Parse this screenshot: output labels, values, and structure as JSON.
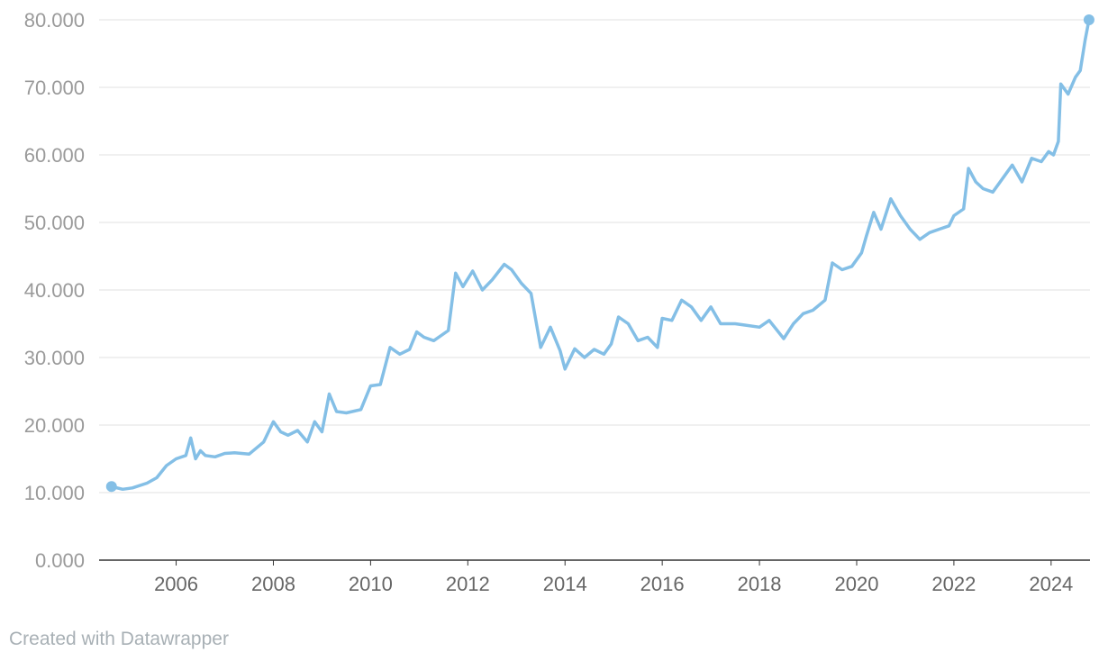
{
  "chart_data": {
    "type": "line",
    "title": "",
    "xlabel": "",
    "ylabel": "",
    "ylim": [
      0,
      80
    ],
    "xlim": [
      2004.6,
      2024.8
    ],
    "y_ticks": [
      0,
      10,
      20,
      30,
      40,
      50,
      60,
      70,
      80
    ],
    "y_tick_labels": [
      "0.000",
      "10.000",
      "20.000",
      "30.000",
      "40.000",
      "50.000",
      "60.000",
      "70.000",
      "80.000"
    ],
    "x_ticks": [
      2006,
      2008,
      2010,
      2012,
      2014,
      2016,
      2018,
      2020,
      2022,
      2024
    ],
    "x_tick_labels": [
      "2006",
      "2008",
      "2010",
      "2012",
      "2014",
      "2016",
      "2018",
      "2020",
      "2022",
      "2024"
    ],
    "grid": true,
    "line_color": "#84bfe6",
    "series": [
      {
        "x": [
          2004.67,
          2004.9,
          2005.1,
          2005.4,
          2005.6,
          2005.8,
          2006.0,
          2006.2,
          2006.3,
          2006.4,
          2006.5,
          2006.6,
          2006.8,
          2007.0,
          2007.2,
          2007.5,
          2007.8,
          2008.0,
          2008.15,
          2008.3,
          2008.5,
          2008.7,
          2008.85,
          2009.0,
          2009.15,
          2009.3,
          2009.5,
          2009.8,
          2010.0,
          2010.2,
          2010.4,
          2010.6,
          2010.8,
          2010.95,
          2011.1,
          2011.3,
          2011.6,
          2011.75,
          2011.9,
          2012.1,
          2012.3,
          2012.5,
          2012.75,
          2012.9,
          2013.1,
          2013.3,
          2013.5,
          2013.7,
          2013.9,
          2014.0,
          2014.2,
          2014.4,
          2014.6,
          2014.8,
          2014.95,
          2015.1,
          2015.3,
          2015.5,
          2015.7,
          2015.9,
          2016.0,
          2016.2,
          2016.4,
          2016.6,
          2016.8,
          2017.0,
          2017.2,
          2017.5,
          2017.7,
          2018.0,
          2018.2,
          2018.5,
          2018.7,
          2018.9,
          2019.1,
          2019.35,
          2019.5,
          2019.7,
          2019.9,
          2020.1,
          2020.2,
          2020.35,
          2020.5,
          2020.7,
          2020.9,
          2021.1,
          2021.3,
          2021.5,
          2021.7,
          2021.9,
          2022.0,
          2022.2,
          2022.3,
          2022.45,
          2022.6,
          2022.8,
          2023.0,
          2023.2,
          2023.4,
          2023.6,
          2023.8,
          2023.95,
          2024.05,
          2024.15,
          2024.2,
          2024.35,
          2024.5,
          2024.6,
          2024.7,
          2024.78
        ],
        "y": [
          10.9,
          10.5,
          10.7,
          11.4,
          12.2,
          14.0,
          15.0,
          15.5,
          18.1,
          15.0,
          16.2,
          15.5,
          15.3,
          15.8,
          15.9,
          15.7,
          17.5,
          20.5,
          19.0,
          18.5,
          19.2,
          17.5,
          20.5,
          19.0,
          24.6,
          22.0,
          21.8,
          22.3,
          25.8,
          26.0,
          31.5,
          30.5,
          31.2,
          33.8,
          33.0,
          32.5,
          34.0,
          42.5,
          40.5,
          42.8,
          40.0,
          41.5,
          43.8,
          43.0,
          41.0,
          39.5,
          31.5,
          34.5,
          31.0,
          28.3,
          31.3,
          30.0,
          31.2,
          30.5,
          32.0,
          36.0,
          35.0,
          32.5,
          33.0,
          31.5,
          35.8,
          35.5,
          38.5,
          37.5,
          35.5,
          37.5,
          35.0,
          35.0,
          34.8,
          34.5,
          35.5,
          32.8,
          35.0,
          36.5,
          37.0,
          38.5,
          44.0,
          43.0,
          43.5,
          45.5,
          48.0,
          51.5,
          49.0,
          53.5,
          51.0,
          49.0,
          47.5,
          48.5,
          49.0,
          49.5,
          51.0,
          52.0,
          58.0,
          56.0,
          55.0,
          54.5,
          56.5,
          58.5,
          56.0,
          59.5,
          59.0,
          60.5,
          60.0,
          62.0,
          70.5,
          69.0,
          71.5,
          72.5,
          77.0,
          80.0
        ]
      }
    ]
  },
  "footer": {
    "credit": "Created with Datawrapper"
  }
}
